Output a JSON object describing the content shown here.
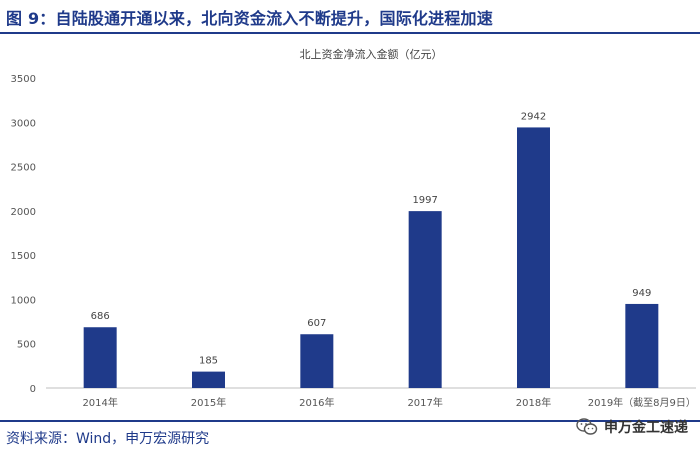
{
  "header": {
    "figure_title": "图 9：自陆股通开通以来，北向资金流入不断提升，国际化进程加速"
  },
  "footer": {
    "source": "资料来源：Wind，申万宏源研究",
    "watermark": "申万金工速递"
  },
  "colors": {
    "bar": "#1f3a8a",
    "title_blue": "#1f3a8a"
  },
  "chart_data": {
    "type": "bar",
    "title": "北上资金净流入金额（亿元）",
    "categories": [
      "2014年",
      "2015年",
      "2016年",
      "2017年",
      "2018年",
      "2019年（截至8月9日）"
    ],
    "values": [
      686,
      185,
      607,
      1997,
      2942,
      949
    ],
    "ylim": [
      0,
      3500
    ],
    "yticks": [
      0,
      500,
      1000,
      1500,
      2000,
      2500,
      3000,
      3500
    ],
    "grid": false,
    "legend": "none"
  }
}
